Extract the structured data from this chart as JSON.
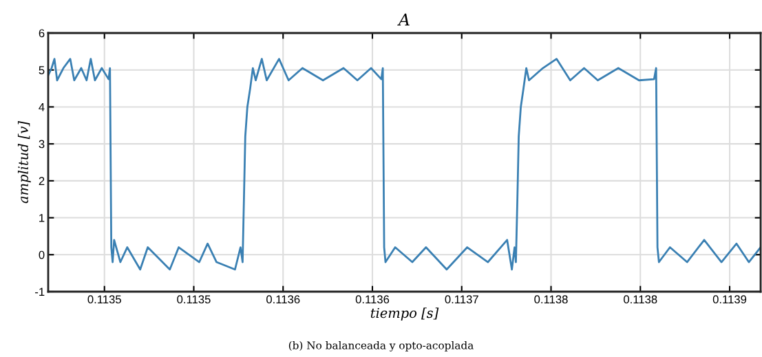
{
  "chart_data": {
    "type": "line",
    "title": "A",
    "xlabel": "tiempo [s]",
    "ylabel": "amplitud [v]",
    "annotations": [
      "(b) No balanceada y opto-acoplada"
    ],
    "xlim": [
      0.1134222,
      0.1139008
    ],
    "ylim": [
      -1,
      6
    ],
    "xticks": [
      {
        "value": 0.11346,
        "label": "0.1135"
      },
      {
        "value": 0.11352,
        "label": "0.1135"
      },
      {
        "value": 0.11358,
        "label": "0.1136"
      },
      {
        "value": 0.11364,
        "label": "0.1136"
      },
      {
        "value": 0.1137,
        "label": "0.1137"
      },
      {
        "value": 0.11376,
        "label": "0.1138"
      },
      {
        "value": 0.11382,
        "label": "0.1138"
      },
      {
        "value": 0.11388,
        "label": "0.1139"
      }
    ],
    "yticks": [
      -1,
      0,
      1,
      2,
      3,
      4,
      5,
      6
    ],
    "grid": true,
    "marker": "none",
    "line_style": "solid",
    "series": [
      {
        "color": "#3a80b3",
        "x": [
          0.1134222,
          0.1134245,
          0.1134264,
          0.1134282,
          0.1134324,
          0.113437,
          0.1134397,
          0.1134444,
          0.113448,
          0.1134508,
          0.1134536,
          0.1134582,
          0.1134628,
          0.1134637,
          0.1134646,
          0.1134655,
          0.1134665,
          0.1134707,
          0.1134753,
          0.113484,
          0.1134891,
          0.1135039,
          0.1135099,
          0.1135237,
          0.1135293,
          0.1135353,
          0.1135477,
          0.1135514,
          0.1135528,
          0.1135537,
          0.1135546,
          0.113556,
          0.1135579,
          0.1135597,
          0.1135616,
          0.1135657,
          0.113569,
          0.1135773,
          0.1135837,
          0.113593,
          0.1136068,
          0.1136206,
          0.1136299,
          0.1136391,
          0.113646,
          0.113647,
          0.1136479,
          0.1136488,
          0.1136553,
          0.1136668,
          0.113676,
          0.1136899,
          0.1137037,
          0.1137176,
          0.1137305,
          0.1137337,
          0.1137355,
          0.1137364,
          0.1137374,
          0.1137383,
          0.1137397,
          0.1137415,
          0.1137434,
          0.1137452,
          0.1137545,
          0.1137637,
          0.1137729,
          0.1137822,
          0.1137914,
          0.1138052,
          0.1138191,
          0.1138292,
          0.1138306,
          0.1138315,
          0.1138325,
          0.1138399,
          0.1138514,
          0.1138629,
          0.1138745,
          0.1138846,
          0.1138929,
          0.1139008
        ],
        "values": [
          4.85,
          5.05,
          5.3,
          4.72,
          5.05,
          5.3,
          4.72,
          5.05,
          4.72,
          5.3,
          4.72,
          5.05,
          4.75,
          5.05,
          0.2,
          -0.2,
          0.4,
          -0.2,
          0.2,
          -0.4,
          0.2,
          -0.4,
          0.2,
          -0.2,
          0.3,
          -0.2,
          -0.4,
          0.2,
          -0.2,
          1.5,
          3.2,
          4.0,
          4.5,
          5.05,
          4.72,
          5.3,
          4.72,
          5.3,
          4.72,
          5.05,
          4.72,
          5.05,
          4.72,
          5.05,
          4.75,
          5.05,
          0.2,
          -0.2,
          0.2,
          -0.2,
          0.2,
          -0.4,
          0.2,
          -0.2,
          0.4,
          -0.4,
          0.2,
          -0.2,
          1.5,
          3.2,
          4.0,
          4.5,
          5.05,
          4.72,
          5.05,
          5.3,
          4.72,
          5.05,
          4.72,
          5.05,
          4.72,
          4.75,
          5.05,
          0.2,
          -0.2,
          0.2,
          -0.2,
          0.4,
          -0.2,
          0.3,
          -0.2,
          0.2
        ]
      }
    ]
  }
}
